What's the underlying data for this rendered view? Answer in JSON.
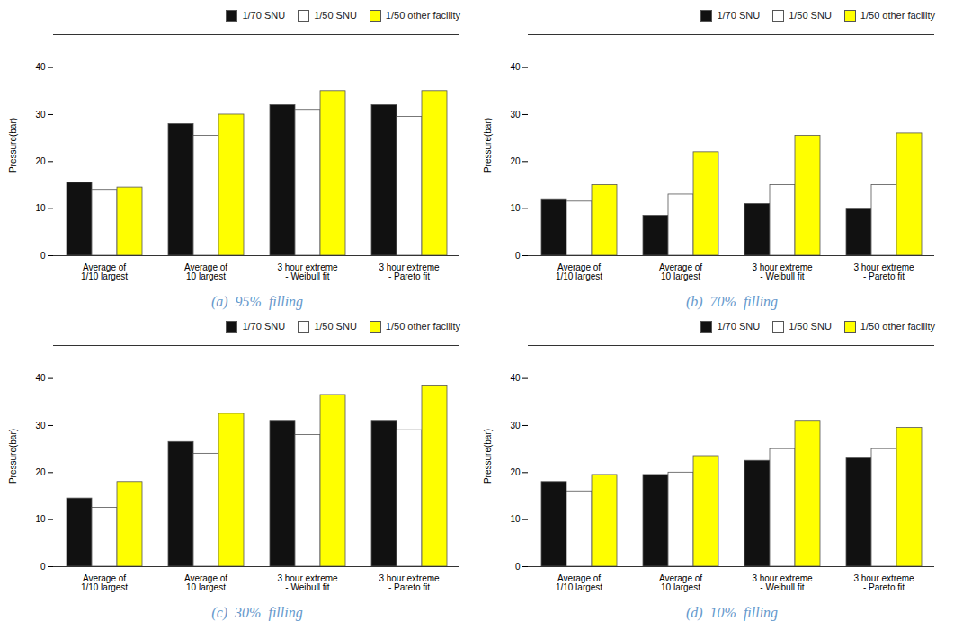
{
  "chart_data": [
    {
      "type": "bar",
      "title": "(a)  95%  filling",
      "ylabel": "Pressure(bar)",
      "categories": [
        "Average of\n1/10 largest",
        "Average of\n10 largest",
        "3 hour extreme\n- Weibull fit",
        "3 hour extreme\n- Pareto fit"
      ],
      "series": [
        {
          "name": "1/70 SNU",
          "color": "#111111",
          "values": [
            15.5,
            28.0,
            32.0,
            32.0
          ]
        },
        {
          "name": "1/50 SNU",
          "color": "#ffffff",
          "values": [
            14.0,
            25.5,
            31.0,
            29.5
          ]
        },
        {
          "name": "1/50 other facility",
          "color": "#ffff00",
          "values": [
            14.5,
            30.0,
            35.0,
            35.0
          ]
        }
      ],
      "ylim": [
        0,
        47
      ],
      "yticks": [
        0,
        10,
        20,
        30,
        40
      ],
      "legend": "upper right",
      "grid": false
    },
    {
      "type": "bar",
      "title": "(b)  70%  filling",
      "ylabel": "Pressure(bar)",
      "categories": [
        "Average of\n1/10 largest",
        "Average of\n10 largest",
        "3 hour extreme\n- Weibull fit",
        "3 hour extreme\n- Pareto fit"
      ],
      "series": [
        {
          "name": "1/70 SNU",
          "color": "#111111",
          "values": [
            12.0,
            8.5,
            11.0,
            10.0
          ]
        },
        {
          "name": "1/50 SNU",
          "color": "#ffffff",
          "values": [
            11.5,
            13.0,
            15.0,
            15.0
          ]
        },
        {
          "name": "1/50 other facility",
          "color": "#ffff00",
          "values": [
            15.0,
            22.0,
            25.5,
            26.0
          ]
        }
      ],
      "ylim": [
        0,
        47
      ],
      "yticks": [
        0,
        10,
        20,
        30,
        40
      ],
      "legend": "upper right",
      "grid": false
    },
    {
      "type": "bar",
      "title": "(c)  30%  filling",
      "ylabel": "Pressure(bar)",
      "categories": [
        "Average of\n1/10 largest",
        "Average of\n10 largest",
        "3 hour extreme\n- Weibull fit",
        "3 hour extreme\n- Pareto fit"
      ],
      "series": [
        {
          "name": "1/70 SNU",
          "color": "#111111",
          "values": [
            14.5,
            26.5,
            31.0,
            31.0
          ]
        },
        {
          "name": "1/50 SNU",
          "color": "#ffffff",
          "values": [
            12.5,
            24.0,
            28.0,
            29.0
          ]
        },
        {
          "name": "1/50 other facility",
          "color": "#ffff00",
          "values": [
            18.0,
            32.5,
            36.5,
            38.5
          ]
        }
      ],
      "ylim": [
        0,
        47
      ],
      "yticks": [
        0,
        10,
        20,
        30,
        40
      ],
      "legend": "upper right",
      "grid": false
    },
    {
      "type": "bar",
      "title": "(d)  10%  filling",
      "ylabel": "Pressure(bar)",
      "categories": [
        "Average of\n1/10 largest",
        "Average of\n10 largest",
        "3 hour extreme\n- Weibull fit",
        "3 hour extreme\n- Pareto fit"
      ],
      "series": [
        {
          "name": "1/70 SNU",
          "color": "#111111",
          "values": [
            18.0,
            19.5,
            22.5,
            23.0
          ]
        },
        {
          "name": "1/50 SNU",
          "color": "#ffffff",
          "values": [
            16.0,
            20.0,
            25.0,
            25.0
          ]
        },
        {
          "name": "1/50 other facility",
          "color": "#ffff00",
          "values": [
            19.5,
            23.5,
            31.0,
            29.5
          ]
        }
      ],
      "ylim": [
        0,
        47
      ],
      "yticks": [
        0,
        10,
        20,
        30,
        40
      ],
      "legend": "upper right",
      "grid": false
    }
  ]
}
